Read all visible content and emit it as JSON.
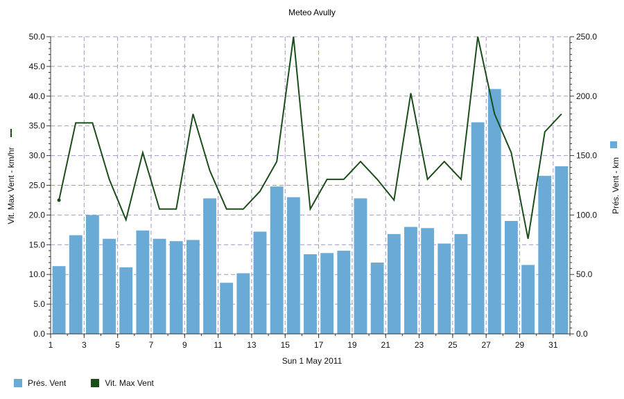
{
  "chart_data": {
    "type": "bar",
    "title": "Meteo  Avully",
    "xlabel": "Sun 1 May 2011",
    "ylabel_left": "Vit. Max Vent - km/hr",
    "ylabel_right": "Prés. Vent - km",
    "x_ticks": [
      "1",
      "3",
      "5",
      "7",
      "9",
      "11",
      "13",
      "15",
      "17",
      "19",
      "21",
      "23",
      "25",
      "27",
      "29",
      "31"
    ],
    "y_left_ticks": [
      "0.0",
      "5.0",
      "10.0",
      "15.0",
      "20.0",
      "25.0",
      "30.0",
      "35.0",
      "40.0",
      "45.0",
      "50.0"
    ],
    "y_right_ticks": [
      "0.0",
      "50.0",
      "100.0",
      "150.0",
      "200.0",
      "250.0"
    ],
    "ylim_left": [
      0,
      50
    ],
    "ylim_right": [
      0,
      250
    ],
    "xlim": [
      1,
      32
    ],
    "grid": true,
    "legend_position": "bottom",
    "days": [
      1,
      2,
      3,
      4,
      5,
      6,
      7,
      8,
      9,
      10,
      11,
      12,
      13,
      14,
      15,
      16,
      17,
      18,
      19,
      20,
      21,
      22,
      23,
      24,
      25,
      26,
      27,
      28,
      29,
      30,
      31
    ],
    "series": [
      {
        "name": "Prés. Vent",
        "type": "bar",
        "axis": "right",
        "color": "#6aaad6",
        "values": [
          57,
          83,
          100,
          80,
          56,
          87,
          80,
          78,
          79,
          114,
          43,
          51,
          86,
          124,
          115,
          67,
          68,
          70,
          114,
          60,
          84,
          90,
          89,
          76,
          84,
          178,
          206,
          95,
          58,
          133,
          141
        ]
      },
      {
        "name": "Vit. Max Vent",
        "type": "line",
        "axis": "left",
        "color": "#1a4d1a",
        "values": [
          22.5,
          35.5,
          35.5,
          26,
          19.2,
          30.5,
          21,
          21,
          37,
          27.5,
          21,
          21,
          24,
          29,
          50,
          21,
          26,
          26,
          29,
          26,
          22.5,
          40.5,
          26,
          29,
          26,
          50,
          37,
          30.5,
          16,
          34,
          37
        ]
      }
    ]
  },
  "legend": {
    "items": [
      {
        "label": "Prés. Vent",
        "color": "#6aaad6"
      },
      {
        "label": "Vit. Max Vent",
        "color": "#1a4d1a"
      }
    ]
  }
}
